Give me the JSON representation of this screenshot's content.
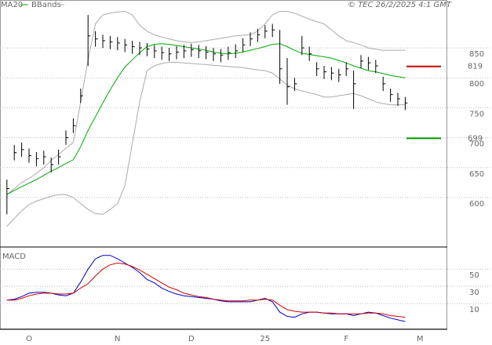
{
  "chart_data": [
    {
      "type": "ohlc",
      "source": "© TEC 26/2/2025 4:1 GMT",
      "categories": [
        null,
        null,
        null,
        "O",
        null,
        null,
        null,
        null,
        null,
        null,
        null,
        null,
        null,
        null,
        null,
        "N",
        null,
        null,
        null,
        null,
        null,
        null,
        null,
        null,
        null,
        "D",
        null,
        null,
        null,
        null,
        null,
        null,
        null,
        null,
        null,
        "25",
        null,
        null,
        null,
        null,
        null,
        null,
        null,
        null,
        null,
        null,
        "F",
        null,
        null,
        null,
        null,
        null,
        null,
        null,
        null,
        null,
        "M"
      ],
      "high": [
        630,
        688,
        692,
        682,
        676,
        678,
        667,
        680,
        712,
        732,
        782,
        905,
        878,
        872,
        870,
        868,
        865,
        862,
        860,
        858,
        855,
        852,
        850,
        853,
        855,
        857,
        855,
        853,
        850,
        848,
        852,
        856,
        866,
        876,
        882,
        888,
        890,
        880,
        833,
        800,
        870,
        852,
        826,
        820,
        818,
        815,
        826,
        812,
        838,
        835,
        830,
        802,
        782,
        775,
        768,
        null,
        null
      ],
      "low": [
        572,
        662,
        668,
        658,
        652,
        655,
        642,
        655,
        688,
        708,
        758,
        820,
        852,
        850,
        848,
        846,
        843,
        840,
        838,
        836,
        833,
        830,
        828,
        831,
        833,
        835,
        833,
        831,
        828,
        826,
        830,
        833,
        843,
        853,
        860,
        866,
        868,
        790,
        755,
        778,
        838,
        828,
        803,
        798,
        796,
        793,
        803,
        748,
        816,
        813,
        808,
        778,
        760,
        753,
        746,
        null,
        null
      ],
      "close": [
        615,
        675,
        680,
        670,
        665,
        668,
        655,
        668,
        700,
        720,
        770,
        870,
        865,
        862,
        860,
        858,
        855,
        852,
        850,
        848,
        845,
        842,
        840,
        843,
        845,
        847,
        845,
        843,
        840,
        838,
        842,
        845,
        855,
        865,
        872,
        878,
        880,
        815,
        785,
        790,
        850,
        840,
        815,
        810,
        808,
        805,
        815,
        790,
        828,
        825,
        820,
        790,
        772,
        765,
        758,
        null,
        null
      ],
      "bar_color": "#000000",
      "series": [
        {
          "name": "MA20",
          "color": "#00aa00",
          "values": [
            605,
            612,
            618,
            624,
            630,
            637,
            644,
            650,
            657,
            663,
            685,
            712,
            735,
            758,
            780,
            800,
            818,
            830,
            842,
            852,
            856,
            857,
            856,
            854,
            852,
            850,
            848,
            846,
            843,
            841,
            840,
            841,
            843,
            846,
            849,
            852,
            856,
            857,
            852,
            846,
            841,
            839,
            837,
            835,
            833,
            829,
            825,
            820,
            816,
            812,
            810,
            807,
            804,
            802,
            800,
            null,
            null
          ]
        }
      ],
      "bands": {
        "name": "BBands",
        "color": "#aaaaaa",
        "upper": [
          605,
          615,
          625,
          632,
          640,
          650,
          662,
          672,
          682,
          692,
          760,
          830,
          890,
          905,
          908,
          910,
          911,
          905,
          888,
          878,
          872,
          868,
          865,
          862,
          860,
          859,
          860,
          862,
          864,
          866,
          868,
          870,
          871,
          872,
          878,
          890,
          905,
          911,
          911,
          908,
          903,
          898,
          894,
          890,
          880,
          870,
          862,
          859,
          855,
          850,
          848,
          846,
          846,
          846,
          846,
          null,
          null
        ],
        "lower": [
          552,
          565,
          578,
          588,
          594,
          598,
          602,
          605,
          605,
          600,
          590,
          580,
          573,
          572,
          580,
          590,
          620,
          690,
          760,
          812,
          820,
          824,
          826,
          826,
          825,
          824,
          823,
          822,
          821,
          820,
          819,
          818,
          817,
          815,
          813,
          812,
          808,
          798,
          788,
          782,
          778,
          775,
          772,
          768,
          768,
          770,
          772,
          774,
          770,
          765,
          760,
          757,
          755,
          755,
          755,
          null,
          null
        ]
      },
      "ylim": [
        520,
        930
      ],
      "yticks": [
        600,
        650,
        700,
        750,
        800,
        850
      ],
      "grid": true,
      "annotations": [
        {
          "value": 819,
          "color": "#cc0000"
        },
        {
          "value": 699,
          "color": "#009900"
        }
      ]
    },
    {
      "type": "line",
      "title": "MACD",
      "series": [
        {
          "color": "#0000cc",
          "values": [
            14,
            15,
            18,
            22,
            23,
            23,
            22,
            20,
            19,
            22,
            35,
            50,
            62,
            66,
            66,
            62,
            57,
            52,
            46,
            38,
            34,
            28,
            24,
            21,
            19,
            18,
            17,
            16,
            15,
            13,
            12,
            12,
            12,
            12,
            14,
            16,
            12,
            0,
            -5,
            -6,
            -2,
            0,
            0,
            -1,
            -2,
            -2,
            -2,
            -4,
            -2,
            0,
            -1,
            -4,
            -7,
            -9,
            -11,
            null,
            null
          ]
        },
        {
          "color": "#cc0000",
          "values": [
            14,
            14,
            16,
            19,
            21,
            22,
            22,
            21,
            21,
            22,
            28,
            33,
            42,
            50,
            55,
            57,
            56,
            53,
            49,
            44,
            39,
            34,
            29,
            26,
            22,
            20,
            18,
            17,
            15,
            14,
            13,
            13,
            13,
            14,
            14,
            15,
            14,
            8,
            3,
            1,
            0,
            0,
            0,
            -1,
            -1,
            -2,
            -2,
            -2,
            -2,
            -1,
            -1,
            -2,
            -4,
            -5,
            -6,
            null,
            null
          ]
        }
      ],
      "ylim": [
        -20,
        73
      ],
      "yticks": [
        10,
        30,
        50
      ],
      "grid": true
    }
  ]
}
